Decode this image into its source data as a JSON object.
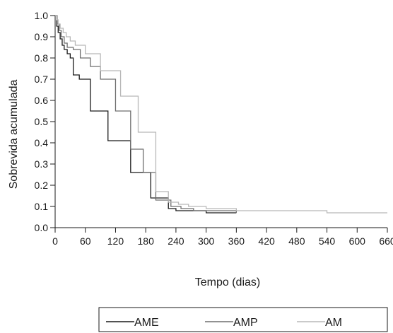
{
  "chart_data": {
    "type": "line",
    "step": true,
    "xlabel": "Tempo (dias)",
    "ylabel": "Sobrevida acumulada",
    "xlim": [
      0,
      660
    ],
    "ylim": [
      0,
      1.0
    ],
    "x_ticks": [
      "0",
      "60",
      "120",
      "180",
      "240",
      "300",
      "360",
      "420",
      "480",
      "540",
      "600",
      "660"
    ],
    "y_ticks": [
      "0.0",
      "0.1",
      "0.2",
      "0.3",
      "0.4",
      "0.5",
      "0.6",
      "0.7",
      "0.8",
      "0.9",
      "1.0"
    ],
    "legend_position": "bottom",
    "series": [
      {
        "name": "AME",
        "color": "#1a1a1a",
        "x": [
          0,
          3,
          6,
          10,
          14,
          18,
          24,
          30,
          36,
          48,
          70,
          105,
          150,
          190,
          225,
          240,
          300,
          360
        ],
        "y": [
          1.0,
          0.95,
          0.92,
          0.89,
          0.86,
          0.84,
          0.82,
          0.8,
          0.72,
          0.7,
          0.55,
          0.41,
          0.26,
          0.14,
          0.09,
          0.08,
          0.07,
          0.07
        ]
      },
      {
        "name": "AMP",
        "color": "#6e6e6e",
        "x": [
          0,
          4,
          8,
          12,
          18,
          24,
          36,
          50,
          70,
          90,
          120,
          150,
          175,
          200,
          230,
          250,
          275,
          300,
          360
        ],
        "y": [
          1.0,
          0.96,
          0.93,
          0.9,
          0.87,
          0.85,
          0.84,
          0.8,
          0.76,
          0.7,
          0.55,
          0.37,
          0.26,
          0.13,
          0.1,
          0.09,
          0.08,
          0.08,
          0.07
        ]
      },
      {
        "name": "AM",
        "color": "#b8b8b8",
        "x": [
          0,
          3,
          6,
          10,
          16,
          22,
          30,
          40,
          60,
          90,
          130,
          165,
          200,
          225,
          245,
          265,
          300,
          360,
          540,
          660
        ],
        "y": [
          1.0,
          0.98,
          0.96,
          0.94,
          0.92,
          0.9,
          0.88,
          0.86,
          0.82,
          0.74,
          0.62,
          0.45,
          0.17,
          0.12,
          0.11,
          0.1,
          0.09,
          0.08,
          0.07,
          0.07
        ]
      }
    ]
  }
}
